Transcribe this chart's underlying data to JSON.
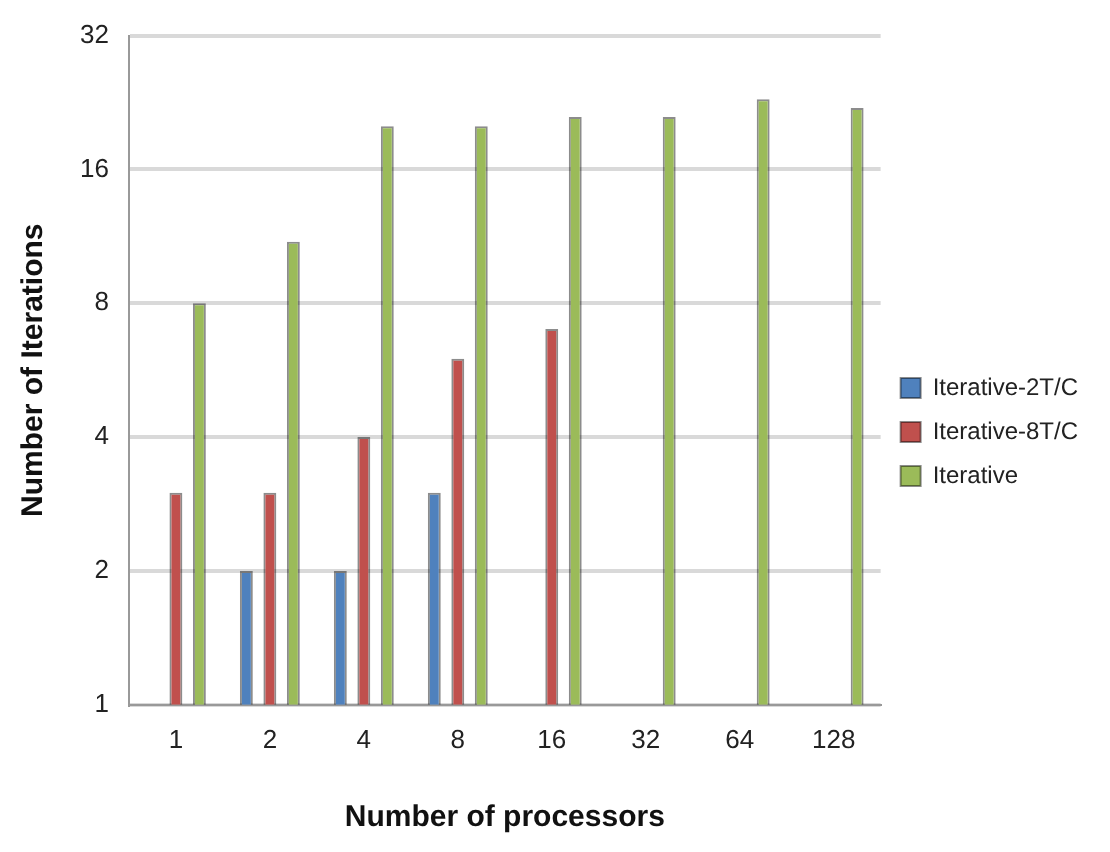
{
  "chart_data": {
    "type": "bar",
    "xlabel": "Number of processors",
    "ylabel": "Number of Iterations",
    "categories": [
      "1",
      "2",
      "4",
      "8",
      "16",
      "32",
      "64",
      "128"
    ],
    "series": [
      {
        "name": "Iterative-2T/C",
        "color": "#4f81bd",
        "values": [
          null,
          2,
          2,
          3,
          null,
          null,
          null,
          null
        ]
      },
      {
        "name": "Iterative-8T/C",
        "color": "#c0504d",
        "values": [
          3,
          3,
          4,
          6,
          7,
          null,
          null,
          null
        ]
      },
      {
        "name": "Iterative",
        "color": "#9bbb59",
        "values": [
          8,
          11,
          20,
          20,
          21,
          21,
          23,
          22
        ]
      }
    ],
    "log": "y",
    "ylim": [
      1,
      32
    ],
    "yticks": [
      1,
      2,
      4,
      8,
      16,
      32
    ],
    "grid": "y",
    "legend": "right"
  }
}
